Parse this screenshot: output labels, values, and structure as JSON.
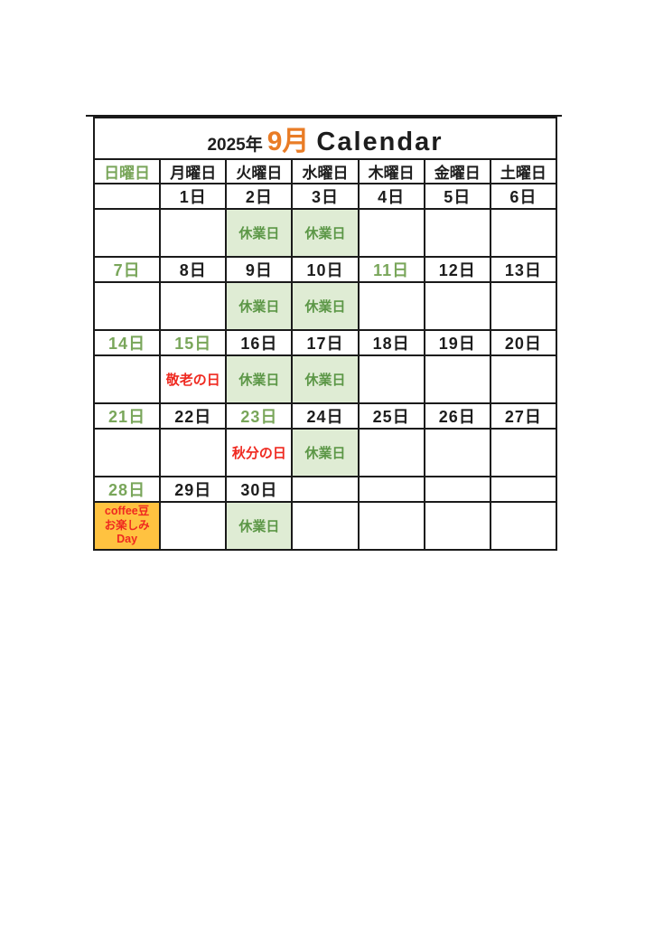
{
  "title": {
    "year": "2025年",
    "month": "9月",
    "label": "Calendar"
  },
  "colors": {
    "border": "#1a1a1a",
    "text_black": "#1d1d1d",
    "green_text": "#79a65a",
    "closed_text": "#5c9747",
    "closed_bg": "#dfecd4",
    "holiday_red": "#ef2920",
    "month_orange": "#e97c26",
    "event_bg": "#ffc240"
  },
  "weekday_headers": [
    {
      "label": "日曜日",
      "green": true
    },
    {
      "label": "月曜日",
      "green": false
    },
    {
      "label": "火曜日",
      "green": false
    },
    {
      "label": "水曜日",
      "green": false
    },
    {
      "label": "木曜日",
      "green": false
    },
    {
      "label": "金曜日",
      "green": false
    },
    {
      "label": "土曜日",
      "green": false
    }
  ],
  "weeks": [
    {
      "days": [
        {
          "date": "",
          "green": false,
          "note": null
        },
        {
          "date": "1日",
          "green": false,
          "note": null
        },
        {
          "date": "2日",
          "green": false,
          "note": {
            "type": "closed",
            "text": "休業日"
          }
        },
        {
          "date": "3日",
          "green": false,
          "note": {
            "type": "closed",
            "text": "休業日"
          }
        },
        {
          "date": "4日",
          "green": false,
          "note": null
        },
        {
          "date": "5日",
          "green": false,
          "note": null
        },
        {
          "date": "6日",
          "green": false,
          "note": null
        }
      ]
    },
    {
      "days": [
        {
          "date": "7日",
          "green": true,
          "note": null
        },
        {
          "date": "8日",
          "green": false,
          "note": null
        },
        {
          "date": "9日",
          "green": false,
          "note": {
            "type": "closed",
            "text": "休業日"
          }
        },
        {
          "date": "10日",
          "green": false,
          "note": {
            "type": "closed",
            "text": "休業日"
          }
        },
        {
          "date": "11日",
          "green": true,
          "note": null
        },
        {
          "date": "12日",
          "green": false,
          "note": null
        },
        {
          "date": "13日",
          "green": false,
          "note": null
        }
      ]
    },
    {
      "days": [
        {
          "date": "14日",
          "green": true,
          "note": null
        },
        {
          "date": "15日",
          "green": true,
          "note": {
            "type": "holiday",
            "text": "敬老の日"
          }
        },
        {
          "date": "16日",
          "green": false,
          "note": {
            "type": "closed",
            "text": "休業日"
          }
        },
        {
          "date": "17日",
          "green": false,
          "note": {
            "type": "closed",
            "text": "休業日"
          }
        },
        {
          "date": "18日",
          "green": false,
          "note": null
        },
        {
          "date": "19日",
          "green": false,
          "note": null
        },
        {
          "date": "20日",
          "green": false,
          "note": null
        }
      ]
    },
    {
      "days": [
        {
          "date": "21日",
          "green": true,
          "note": null
        },
        {
          "date": "22日",
          "green": false,
          "note": null
        },
        {
          "date": "23日",
          "green": true,
          "note": {
            "type": "holiday",
            "text": "秋分の日"
          }
        },
        {
          "date": "24日",
          "green": false,
          "note": {
            "type": "closed",
            "text": "休業日"
          }
        },
        {
          "date": "25日",
          "green": false,
          "note": null
        },
        {
          "date": "26日",
          "green": false,
          "note": null
        },
        {
          "date": "27日",
          "green": false,
          "note": null
        }
      ]
    },
    {
      "days": [
        {
          "date": "28日",
          "green": true,
          "note": {
            "type": "event",
            "lines": [
              "coffee豆",
              "お楽しみ",
              "Day"
            ]
          }
        },
        {
          "date": "29日",
          "green": false,
          "note": null
        },
        {
          "date": "30日",
          "green": false,
          "note": {
            "type": "closed",
            "text": "休業日"
          }
        },
        {
          "date": "",
          "green": false,
          "note": null
        },
        {
          "date": "",
          "green": false,
          "note": null
        },
        {
          "date": "",
          "green": false,
          "note": null
        },
        {
          "date": "",
          "green": false,
          "note": null
        }
      ]
    }
  ]
}
